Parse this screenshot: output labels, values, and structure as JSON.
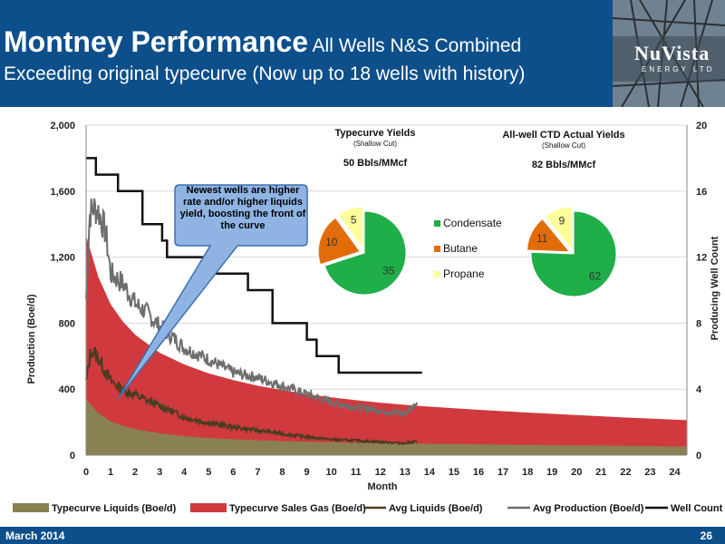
{
  "header": {
    "title_main": "Montney Performance",
    "title_sub": "All Wells N&S Combined",
    "subtitle": "Exceeding original typecurve (Now up to 18 wells with history)",
    "logo_text": "NuVista",
    "logo_sub": "ENERGY LTD",
    "bg_color": "#0d4f8b"
  },
  "footer": {
    "date": "March 2014",
    "page": "26"
  },
  "callout": {
    "text": "Newest wells are higher rate and/or higher liquids yield, boosting the front of the curve"
  },
  "chart_data": {
    "type": "area",
    "xlabel": "Month",
    "ylabel": "Production (Boe/d)",
    "y2label": "Producing Well Count",
    "xlim": [
      0,
      24.5
    ],
    "ylim": [
      0,
      2000
    ],
    "y2lim": [
      0,
      20
    ],
    "x_ticks": [
      0,
      1,
      2,
      3,
      4,
      5,
      6,
      7,
      8,
      9,
      10,
      11,
      12,
      13,
      14,
      15,
      16,
      17,
      18,
      19,
      20,
      21,
      22,
      23,
      24
    ],
    "y_ticks": [
      0,
      400,
      800,
      1200,
      1600,
      2000
    ],
    "y_tick_labels": [
      "0",
      "400",
      "800",
      "1,200",
      "1,600",
      "2,000"
    ],
    "y2_ticks": [
      0,
      4,
      8,
      12,
      16,
      20
    ],
    "grid": "horizontal",
    "legend_position": "bottom",
    "series": [
      {
        "name": "Typecurve Liquids (Boe/d)",
        "kind": "area",
        "color": "#8a8152",
        "x": [
          0,
          0.5,
          1,
          1.5,
          2,
          3,
          4,
          5,
          6,
          7,
          8,
          9,
          10,
          11,
          12,
          13,
          14,
          16,
          18,
          20,
          22,
          24.5
        ],
        "values": [
          340,
          255,
          205,
          178,
          158,
          132,
          115,
          104,
          96,
          90,
          85,
          81,
          78,
          75,
          73,
          71,
          69,
          65,
          62,
          59,
          56,
          52
        ]
      },
      {
        "name": "Typecurve Sales Gas (Boe/d)",
        "kind": "area",
        "color": "#d03a3f",
        "x": [
          0,
          0.5,
          1,
          1.5,
          2,
          3,
          4,
          5,
          6,
          7,
          8,
          9,
          10,
          11,
          12,
          13,
          14,
          16,
          18,
          20,
          22,
          24.5
        ],
        "values": [
          1330,
          1080,
          915,
          810,
          730,
          620,
          550,
          495,
          455,
          420,
          395,
          370,
          350,
          333,
          318,
          305,
          294,
          275,
          258,
          243,
          228,
          212
        ]
      },
      {
        "name": "Avg Liquids (Boe/d)",
        "kind": "line",
        "color": "#4a3c20",
        "x": [
          0,
          0.2,
          0.5,
          1,
          1.5,
          2,
          2.5,
          3,
          4,
          5,
          6,
          7,
          8,
          9,
          10,
          11,
          12,
          13,
          13.5
        ],
        "values": [
          440,
          640,
          590,
          450,
          395,
          365,
          330,
          300,
          230,
          195,
          170,
          150,
          130,
          110,
          95,
          88,
          80,
          72,
          85
        ]
      },
      {
        "name": "Avg Production (Boe/d)",
        "kind": "line",
        "color": "#6e6e6e",
        "x": [
          0,
          0.15,
          0.3,
          0.5,
          0.8,
          1,
          1.5,
          2,
          2.5,
          3,
          3.5,
          4,
          5,
          6,
          7,
          8,
          9,
          10,
          11,
          12,
          13,
          13.5
        ],
        "values": [
          950,
          1460,
          1500,
          1480,
          1350,
          1100,
          1040,
          920,
          860,
          780,
          720,
          650,
          580,
          500,
          470,
          420,
          370,
          320,
          290,
          270,
          250,
          320
        ]
      },
      {
        "name": "Well Count",
        "kind": "step",
        "color": "#111111",
        "axis": "right",
        "x": [
          0,
          0.4,
          0.4,
          1.3,
          1.3,
          2.3,
          2.3,
          3.1,
          3.1,
          3.3,
          3.3,
          4.3,
          4.3,
          5.3,
          5.3,
          6.6,
          6.6,
          7.6,
          7.6,
          9.0,
          9.0,
          9.4,
          9.4,
          10.3,
          10.3,
          13.7
        ],
        "values": [
          18,
          18,
          17,
          17,
          16,
          16,
          14,
          14,
          13,
          13,
          12,
          12,
          12,
          12,
          11,
          11,
          10,
          10,
          8,
          8,
          7,
          7,
          6,
          6,
          5,
          5
        ]
      }
    ],
    "pies": [
      {
        "title": "Typecurve Yields",
        "subtitle": "(Shallow Cut)",
        "value_label": "50 Bbls/MMcf",
        "slices": [
          {
            "name": "Condensate",
            "value": 35,
            "color": "#1fae48"
          },
          {
            "name": "Butane",
            "value": 10,
            "color": "#e36c0a"
          },
          {
            "name": "Propane",
            "value": 5,
            "color": "#ffff99"
          }
        ]
      },
      {
        "title": "All-well CTD Actual Yields",
        "subtitle": "(Shallow Cut)",
        "value_label": "82 Bbls/MMcf",
        "slices": [
          {
            "name": "Condensate",
            "value": 62,
            "color": "#1fae48"
          },
          {
            "name": "Butane",
            "value": 11,
            "color": "#e36c0a"
          },
          {
            "name": "Propane",
            "value": 9,
            "color": "#ffff99"
          }
        ]
      }
    ],
    "pie_legend": [
      "Condensate",
      "Butane",
      "Propane"
    ]
  }
}
